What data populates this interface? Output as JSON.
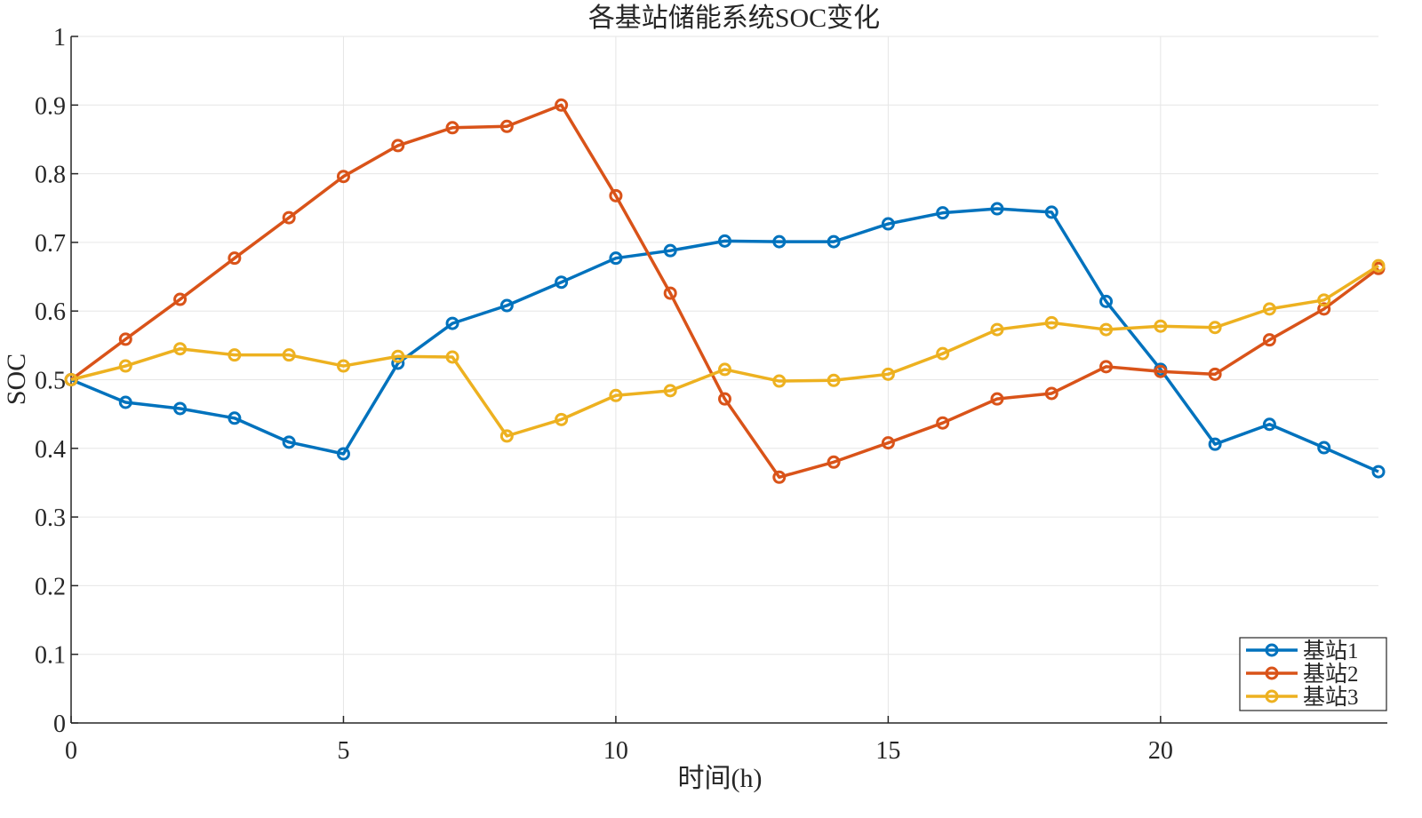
{
  "chart_data": {
    "type": "line",
    "title": "各基站储能系统SOC变化",
    "xlabel": "时间(h)",
    "ylabel": "SOC",
    "xlim": [
      0,
      24
    ],
    "ylim": [
      0,
      1
    ],
    "grid": true,
    "legend_position": "bottom-right",
    "x_ticks": [
      0,
      5,
      10,
      15,
      20
    ],
    "y_ticks": [
      0,
      0.1,
      0.2,
      0.3,
      0.4,
      0.5,
      0.6,
      0.7,
      0.8,
      0.9,
      1
    ],
    "x_tick_labels": [
      "0",
      "5",
      "10",
      "15",
      "20"
    ],
    "y_tick_labels": [
      "0",
      "0.1",
      "0.2",
      "0.3",
      "0.4",
      "0.5",
      "0.6",
      "0.7",
      "0.8",
      "0.9",
      "1"
    ],
    "x": [
      0,
      1,
      2,
      3,
      4,
      5,
      6,
      7,
      8,
      9,
      10,
      11,
      12,
      13,
      14,
      15,
      16,
      17,
      18,
      19,
      20,
      21,
      22,
      23,
      24
    ],
    "series": [
      {
        "name": "基站1",
        "color": "#0072BD",
        "values": [
          0.5,
          0.467,
          0.458,
          0.444,
          0.409,
          0.392,
          0.524,
          0.582,
          0.608,
          0.642,
          0.677,
          0.688,
          0.702,
          0.701,
          0.701,
          0.727,
          0.743,
          0.749,
          0.744,
          0.614,
          0.515,
          0.406,
          0.435,
          0.401,
          0.366
        ]
      },
      {
        "name": "基站2",
        "color": "#D95319",
        "values": [
          0.5,
          0.559,
          0.617,
          0.677,
          0.736,
          0.796,
          0.841,
          0.867,
          0.869,
          0.9,
          0.768,
          0.626,
          0.472,
          0.358,
          0.38,
          0.408,
          0.437,
          0.472,
          0.48,
          0.519,
          0.512,
          0.508,
          0.558,
          0.603,
          0.662
        ]
      },
      {
        "name": "基站3",
        "color": "#EDB120",
        "values": [
          0.5,
          0.52,
          0.545,
          0.536,
          0.536,
          0.52,
          0.534,
          0.533,
          0.418,
          0.442,
          0.477,
          0.484,
          0.515,
          0.498,
          0.499,
          0.508,
          0.538,
          0.573,
          0.583,
          0.573,
          0.578,
          0.576,
          0.603,
          0.616,
          0.666
        ]
      }
    ]
  }
}
